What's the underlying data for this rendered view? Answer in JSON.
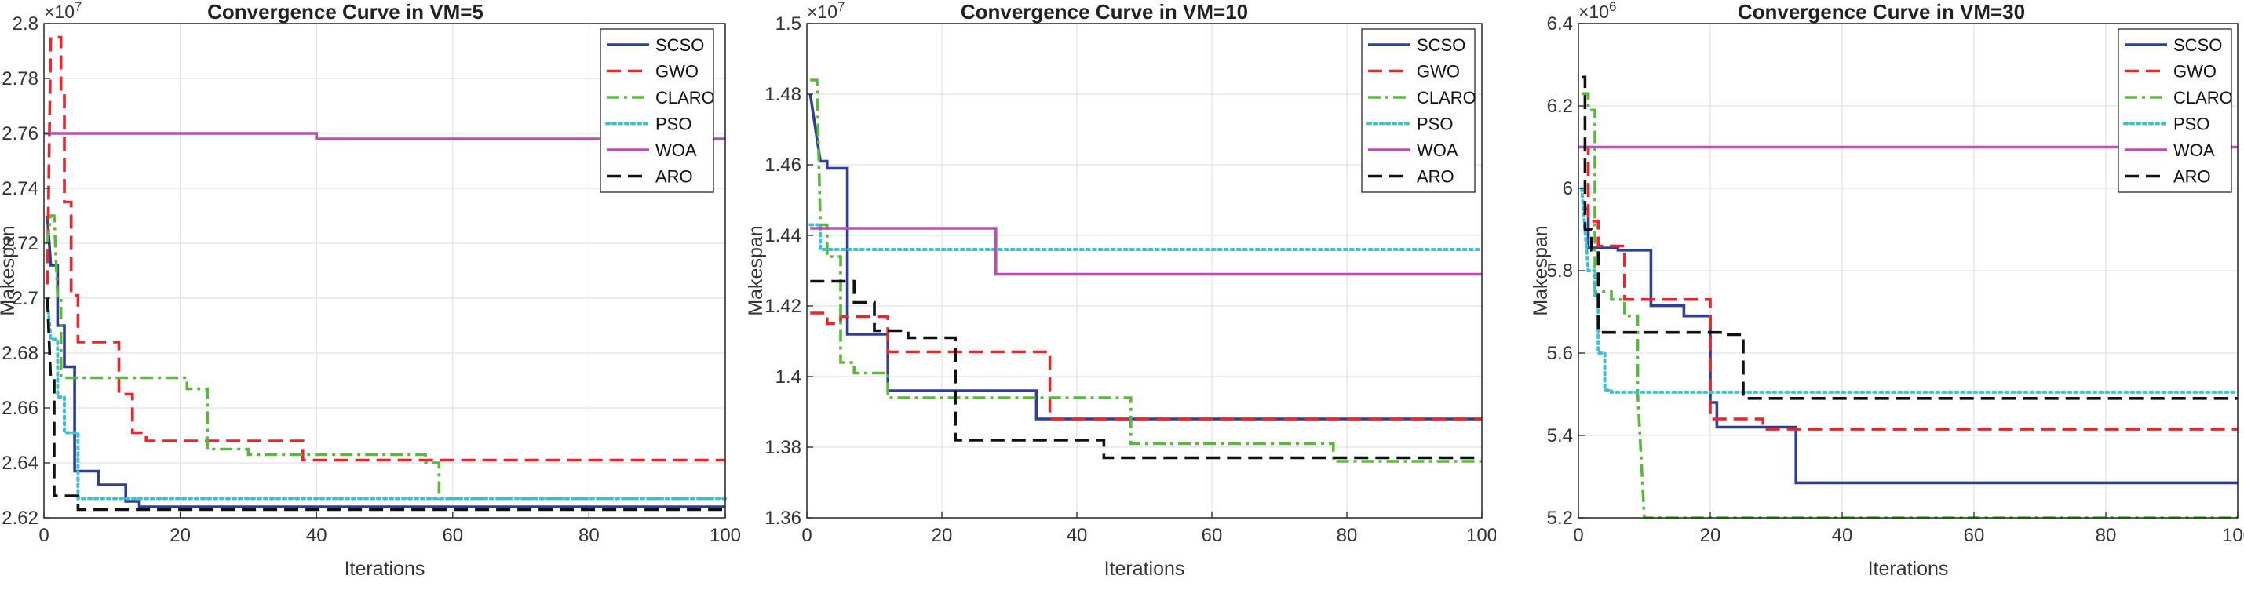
{
  "chart_data": [
    {
      "type": "line",
      "title": "Convergence Curve in VM=5",
      "xlabel": "Iterations",
      "ylabel": "Makespan",
      "exponent": "10^7",
      "xlim": [
        0,
        100
      ],
      "ylim": [
        2.62,
        2.8
      ],
      "xticks": [
        0,
        20,
        40,
        60,
        80,
        100
      ],
      "xtick_labels": [
        "0",
        "20",
        "40",
        "60",
        "80",
        "100"
      ],
      "yticks": [
        2.62,
        2.64,
        2.66,
        2.68,
        2.7,
        2.72,
        2.74,
        2.76,
        2.78,
        2.8
      ],
      "ytick_labels": [
        "2.62",
        "2.64",
        "2.66",
        "2.68",
        "2.7",
        "2.72",
        "2.74",
        "2.76",
        "2.78",
        "2.8"
      ],
      "grid": true,
      "legend_position": "top-right",
      "series": [
        {
          "name": "SCSO",
          "color": "#2e3f95",
          "dash": "solid",
          "points": [
            [
              0.5,
              2.73
            ],
            [
              1,
              2.712
            ],
            [
              2,
              2.712
            ],
            [
              2,
              2.69
            ],
            [
              3,
              2.69
            ],
            [
              3,
              2.675
            ],
            [
              4.5,
              2.675
            ],
            [
              4.5,
              2.637
            ],
            [
              8,
              2.637
            ],
            [
              8,
              2.632
            ],
            [
              12,
              2.632
            ],
            [
              12,
              2.626
            ],
            [
              14,
              2.626
            ],
            [
              14,
              2.624
            ],
            [
              100,
              2.624
            ]
          ]
        },
        {
          "name": "GWO",
          "color": "#e8262b",
          "dash": "dashed",
          "points": [
            [
              0.5,
              2.705
            ],
            [
              1,
              2.795
            ],
            [
              2.5,
              2.795
            ],
            [
              2.5,
              2.775
            ],
            [
              3,
              2.775
            ],
            [
              3,
              2.735
            ],
            [
              4,
              2.735
            ],
            [
              4,
              2.701
            ],
            [
              5,
              2.701
            ],
            [
              5,
              2.684
            ],
            [
              11,
              2.684
            ],
            [
              11,
              2.665
            ],
            [
              13,
              2.665
            ],
            [
              13,
              2.651
            ],
            [
              15,
              2.651
            ],
            [
              15,
              2.648
            ],
            [
              38,
              2.648
            ],
            [
              38,
              2.641
            ],
            [
              100,
              2.641
            ]
          ]
        },
        {
          "name": "CLARO",
          "color": "#5cb83c",
          "dash": "dashdot",
          "points": [
            [
              0.5,
              2.72
            ],
            [
              1,
              2.73
            ],
            [
              1.5,
              2.73
            ],
            [
              2,
              2.7
            ],
            [
              2.5,
              2.7
            ],
            [
              2.5,
              2.671
            ],
            [
              21,
              2.671
            ],
            [
              21,
              2.667
            ],
            [
              24,
              2.667
            ],
            [
              24,
              2.645
            ],
            [
              30,
              2.645
            ],
            [
              30,
              2.643
            ],
            [
              56,
              2.643
            ],
            [
              56,
              2.64
            ],
            [
              58,
              2.64
            ],
            [
              58,
              2.627
            ],
            [
              100,
              2.627
            ]
          ]
        },
        {
          "name": "PSO",
          "color": "#3cc1d1",
          "dash": "dotted",
          "points": [
            [
              0.5,
              2.7
            ],
            [
              1,
              2.685
            ],
            [
              2,
              2.685
            ],
            [
              2,
              2.664
            ],
            [
              3,
              2.664
            ],
            [
              3,
              2.651
            ],
            [
              5,
              2.651
            ],
            [
              5,
              2.627
            ],
            [
              100,
              2.627
            ]
          ]
        },
        {
          "name": "WOA",
          "color": "#b94fb3",
          "dash": "solid",
          "points": [
            [
              0,
              2.76
            ],
            [
              40,
              2.76
            ],
            [
              40,
              2.758
            ],
            [
              100,
              2.758
            ]
          ]
        },
        {
          "name": "ARO",
          "color": "#111111",
          "dash": "dashed",
          "points": [
            [
              0.5,
              2.7
            ],
            [
              1,
              2.67
            ],
            [
              1.5,
              2.67
            ],
            [
              1.5,
              2.628
            ],
            [
              5,
              2.628
            ],
            [
              5,
              2.623
            ],
            [
              100,
              2.623
            ]
          ]
        }
      ]
    },
    {
      "type": "line",
      "title": "Convergence Curve in VM=10",
      "xlabel": "Iterations",
      "ylabel": "Makespan",
      "exponent": "10^7",
      "xlim": [
        0,
        100
      ],
      "ylim": [
        1.36,
        1.5
      ],
      "xticks": [
        0,
        20,
        40,
        60,
        80,
        100
      ],
      "xtick_labels": [
        "0",
        "20",
        "40",
        "60",
        "80",
        "100"
      ],
      "yticks": [
        1.36,
        1.38,
        1.4,
        1.42,
        1.44,
        1.46,
        1.48,
        1.5
      ],
      "ytick_labels": [
        "1.36",
        "1.38",
        "1.4",
        "1.42",
        "1.44",
        "1.46",
        "1.48",
        "1.5"
      ],
      "grid": true,
      "legend_position": "top-right",
      "series": [
        {
          "name": "SCSO",
          "color": "#2e3f95",
          "dash": "solid",
          "points": [
            [
              0.5,
              1.48
            ],
            [
              2,
              1.461
            ],
            [
              3,
              1.461
            ],
            [
              3,
              1.459
            ],
            [
              6,
              1.459
            ],
            [
              6,
              1.412
            ],
            [
              12,
              1.412
            ],
            [
              12,
              1.396
            ],
            [
              34,
              1.396
            ],
            [
              34,
              1.388
            ],
            [
              100,
              1.388
            ]
          ]
        },
        {
          "name": "GWO",
          "color": "#e8262b",
          "dash": "dashed",
          "points": [
            [
              0.5,
              1.418
            ],
            [
              3,
              1.418
            ],
            [
              3,
              1.415
            ],
            [
              5,
              1.415
            ],
            [
              5,
              1.417
            ],
            [
              12,
              1.417
            ],
            [
              12,
              1.407
            ],
            [
              36,
              1.407
            ],
            [
              36,
              1.388
            ],
            [
              100,
              1.388
            ]
          ]
        },
        {
          "name": "CLARO",
          "color": "#5cb83c",
          "dash": "dashdot",
          "points": [
            [
              0.5,
              1.484
            ],
            [
              1.5,
              1.484
            ],
            [
              2,
              1.443
            ],
            [
              3,
              1.443
            ],
            [
              3,
              1.434
            ],
            [
              5,
              1.434
            ],
            [
              5,
              1.404
            ],
            [
              7,
              1.404
            ],
            [
              7,
              1.401
            ],
            [
              12,
              1.401
            ],
            [
              12,
              1.394
            ],
            [
              48,
              1.394
            ],
            [
              48,
              1.381
            ],
            [
              78,
              1.381
            ],
            [
              78,
              1.376
            ],
            [
              100,
              1.376
            ]
          ]
        },
        {
          "name": "PSO",
          "color": "#3cc1d1",
          "dash": "dotted",
          "points": [
            [
              0.5,
              1.443
            ],
            [
              2,
              1.443
            ],
            [
              2,
              1.436
            ],
            [
              100,
              1.436
            ]
          ]
        },
        {
          "name": "WOA",
          "color": "#b94fb3",
          "dash": "solid",
          "points": [
            [
              0.5,
              1.442
            ],
            [
              28,
              1.442
            ],
            [
              28,
              1.429
            ],
            [
              100,
              1.429
            ]
          ]
        },
        {
          "name": "ARO",
          "color": "#111111",
          "dash": "dashed",
          "points": [
            [
              0.5,
              1.427
            ],
            [
              7,
              1.427
            ],
            [
              7,
              1.421
            ],
            [
              10,
              1.421
            ],
            [
              10,
              1.413
            ],
            [
              15,
              1.413
            ],
            [
              15,
              1.411
            ],
            [
              22,
              1.411
            ],
            [
              22,
              1.382
            ],
            [
              44,
              1.382
            ],
            [
              44,
              1.377
            ],
            [
              100,
              1.377
            ]
          ]
        }
      ]
    },
    {
      "type": "line",
      "title": "Convergence Curve in VM=30",
      "xlabel": "Iterations",
      "ylabel": "Makespan",
      "exponent": "10^6",
      "xlim": [
        0,
        100
      ],
      "ylim": [
        5.2,
        6.4
      ],
      "xticks": [
        0,
        20,
        40,
        60,
        80,
        100
      ],
      "xtick_labels": [
        "0",
        "20",
        "40",
        "60",
        "80",
        "100"
      ],
      "yticks": [
        5.2,
        5.4,
        5.6,
        5.8,
        6,
        6.2,
        6.4
      ],
      "ytick_labels": [
        "5.2",
        "5.4",
        "5.6",
        "5.8",
        "6",
        "6.2",
        "6.4"
      ],
      "grid": true,
      "legend_position": "top-right",
      "series": [
        {
          "name": "SCSO",
          "color": "#2e3f95",
          "dash": "solid",
          "points": [
            [
              0.5,
              5.95
            ],
            [
              1.5,
              5.95
            ],
            [
              1.5,
              5.855
            ],
            [
              6,
              5.855
            ],
            [
              6,
              5.85
            ],
            [
              11,
              5.85
            ],
            [
              11,
              5.715
            ],
            [
              16,
              5.715
            ],
            [
              16,
              5.69
            ],
            [
              20,
              5.69
            ],
            [
              20,
              5.48
            ],
            [
              21,
              5.48
            ],
            [
              21,
              5.42
            ],
            [
              33,
              5.42
            ],
            [
              33,
              5.285
            ],
            [
              100,
              5.285
            ]
          ]
        },
        {
          "name": "GWO",
          "color": "#e8262b",
          "dash": "dashed",
          "points": [
            [
              0.5,
              6.1
            ],
            [
              1.5,
              6.1
            ],
            [
              1.5,
              5.92
            ],
            [
              3,
              5.92
            ],
            [
              3,
              5.86
            ],
            [
              7,
              5.86
            ],
            [
              7,
              5.73
            ],
            [
              20,
              5.73
            ],
            [
              20,
              5.44
            ],
            [
              28,
              5.44
            ],
            [
              28,
              5.415
            ],
            [
              100,
              5.415
            ]
          ]
        },
        {
          "name": "CLARO",
          "color": "#5cb83c",
          "dash": "dashdot",
          "points": [
            [
              0.5,
              6.23
            ],
            [
              1.5,
              6.23
            ],
            [
              1.5,
              6.19
            ],
            [
              2.5,
              6.19
            ],
            [
              2.5,
              5.75
            ],
            [
              5,
              5.75
            ],
            [
              5,
              5.73
            ],
            [
              7,
              5.73
            ],
            [
              7,
              5.69
            ],
            [
              9,
              5.69
            ],
            [
              9,
              5.5
            ],
            [
              10,
              5.2
            ],
            [
              100,
              5.2
            ]
          ]
        },
        {
          "name": "PSO",
          "color": "#3cc1d1",
          "dash": "dotted",
          "points": [
            [
              0.5,
              6.0
            ],
            [
              1.5,
              5.8
            ],
            [
              2.5,
              5.8
            ],
            [
              2.5,
              5.74
            ],
            [
              3,
              5.74
            ],
            [
              3,
              5.6
            ],
            [
              4,
              5.6
            ],
            [
              4,
              5.51
            ],
            [
              5,
              5.51
            ],
            [
              5,
              5.505
            ],
            [
              100,
              5.505
            ]
          ]
        },
        {
          "name": "WOA",
          "color": "#b94fb3",
          "dash": "solid",
          "points": [
            [
              0,
              6.1
            ],
            [
              100,
              6.1
            ]
          ]
        },
        {
          "name": "ARO",
          "color": "#111111",
          "dash": "dashed",
          "points": [
            [
              0.5,
              6.27
            ],
            [
              1,
              6.27
            ],
            [
              1,
              5.9
            ],
            [
              2,
              5.9
            ],
            [
              2,
              5.85
            ],
            [
              3,
              5.85
            ],
            [
              3,
              5.65
            ],
            [
              22,
              5.65
            ],
            [
              22,
              5.645
            ],
            [
              25,
              5.645
            ],
            [
              25,
              5.49
            ],
            [
              100,
              5.49
            ]
          ]
        }
      ]
    }
  ]
}
